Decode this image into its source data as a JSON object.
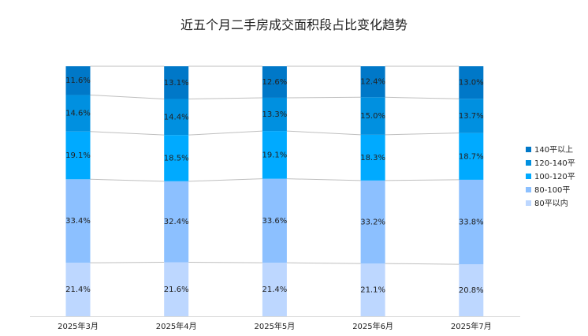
{
  "chart_data": {
    "type": "bar",
    "stacked": true,
    "percent": true,
    "title": "近五个月二手房成交面积段占比变化趋势",
    "categories": [
      "2025年3月",
      "2025年4月",
      "2025年5月",
      "2025年6月",
      "2025年7月"
    ],
    "series": [
      {
        "name": "80平以内",
        "color": "#bdd7ff",
        "values": [
          21.4,
          21.6,
          21.4,
          21.1,
          20.8
        ]
      },
      {
        "name": "80-100平",
        "color": "#8cc0ff",
        "values": [
          33.4,
          32.4,
          33.6,
          33.2,
          33.8
        ]
      },
      {
        "name": "100-120平",
        "color": "#00aaff",
        "values": [
          19.1,
          18.5,
          19.1,
          18.3,
          18.7
        ]
      },
      {
        "name": "120-140平",
        "color": "#0090e0",
        "values": [
          14.6,
          14.4,
          13.3,
          15.0,
          13.7
        ]
      },
      {
        "name": "140平以上",
        "color": "#0078c8",
        "values": [
          11.6,
          13.1,
          12.6,
          12.4,
          13.0
        ]
      }
    ],
    "legend_order": [
      "140平以上",
      "120-140平",
      "100-120平",
      "80-100平",
      "80平以内"
    ],
    "legend": "right",
    "ylim": [
      0,
      100
    ],
    "value_suffix": "%",
    "grid": false,
    "connector_lines": true
  }
}
